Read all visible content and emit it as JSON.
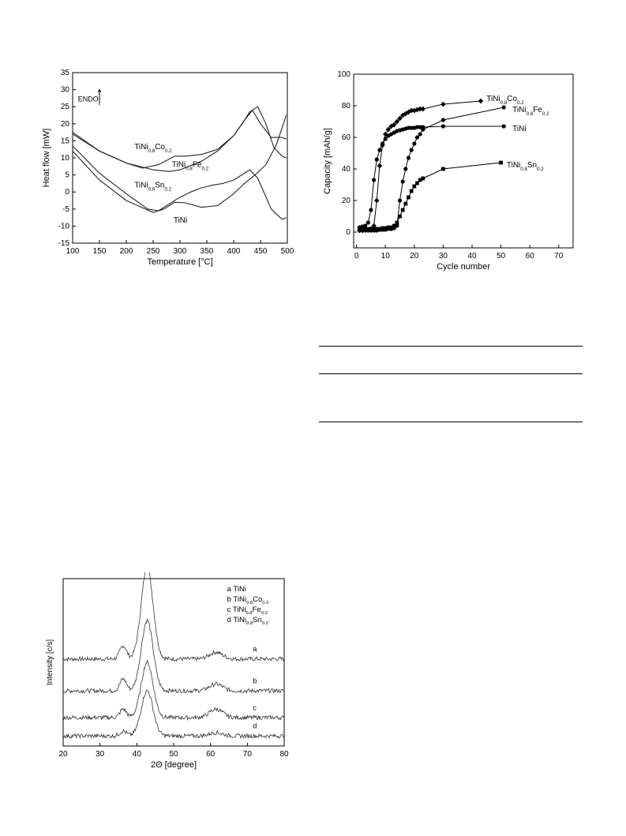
{
  "chart_data": [
    {
      "type": "line",
      "xlabel": "Temperature [°C]",
      "ylabel": "Heat flow [mW]",
      "xlim": [
        100,
        500
      ],
      "ylim": [
        -15,
        35
      ],
      "xticks": [
        100,
        150,
        200,
        250,
        300,
        350,
        400,
        450,
        500
      ],
      "yticks": [
        -15,
        -10,
        -5,
        0,
        5,
        10,
        15,
        20,
        25,
        30,
        35
      ],
      "annotation": "ENDO",
      "labels": [
        {
          "base": "TiNi",
          "sub1": "0.8",
          "el": "Co",
          "sub2": "0.2",
          "x": 215,
          "y": 12.5
        },
        {
          "base": "TiNi",
          "sub1": "0.8",
          "el": "Fe",
          "sub2": "0.2",
          "x": 285,
          "y": 7.3
        },
        {
          "base": "TiNi",
          "sub1": "0.8",
          "el": "Sn",
          "sub2": "0.2",
          "x": 215,
          "y": 1.3
        },
        {
          "base": "TiNi",
          "sub1": "",
          "el": "",
          "sub2": "",
          "x": 288,
          "y": -9.0
        }
      ],
      "series": [
        {
          "name": "TiNi0.8Co0.2",
          "x": [
            100,
            150,
            200,
            230,
            260,
            290,
            310,
            340,
            370,
            400,
            420,
            435,
            450,
            470,
            490,
            498
          ],
          "y": [
            17.5,
            12,
            8.5,
            7,
            8,
            10.5,
            10.5,
            11,
            12.5,
            16.5,
            21,
            24,
            20,
            16,
            16,
            15.5
          ]
        },
        {
          "name": "TiNi0.8Fe0.2",
          "x": [
            100,
            150,
            200,
            250,
            280,
            300,
            340,
            370,
            400,
            420,
            430,
            445,
            460,
            475,
            490,
            498
          ],
          "y": [
            17,
            12,
            8.5,
            6.5,
            6,
            6.5,
            9,
            12,
            16.5,
            21,
            23.5,
            25,
            20,
            13,
            10.5,
            10
          ]
        },
        {
          "name": "TiNi0.8Sn0.2",
          "x": [
            100,
            150,
            200,
            240,
            260,
            280,
            300,
            320,
            340,
            360,
            380,
            400,
            415,
            430,
            445,
            470,
            490,
            498
          ],
          "y": [
            13.5,
            5.5,
            -0.5,
            -5,
            -5.5,
            -3.5,
            -1.5,
            0,
            1.2,
            2,
            2.5,
            3.5,
            5,
            6.5,
            4,
            -5,
            -8,
            -7.5
          ]
        },
        {
          "name": "TiNi",
          "x": [
            100,
            150,
            200,
            250,
            270,
            290,
            310,
            340,
            370,
            400,
            420,
            440,
            460,
            480,
            498
          ],
          "y": [
            12,
            3.5,
            -2.5,
            -6,
            -5,
            -3,
            -3.2,
            -4.5,
            -4,
            -0.5,
            2.5,
            5,
            8,
            14,
            22.5
          ]
        }
      ]
    },
    {
      "type": "line",
      "xlabel": "Cycle number",
      "ylabel": "Capacity [mAh/g]",
      "xlim": [
        -1,
        75
      ],
      "ylim": [
        -10,
        100
      ],
      "xticks": [
        0,
        10,
        20,
        30,
        40,
        50,
        60,
        70
      ],
      "yticks": [
        0,
        20,
        40,
        60,
        80,
        100
      ],
      "labels": [
        {
          "base": "TiNi",
          "sub1": "0.8",
          "el": "Co",
          "sub2": "0.2",
          "x": 45,
          "y": 83
        },
        {
          "base": "TiNi",
          "sub1": "0.8",
          "el": "Fe",
          "sub2": "0.2",
          "x": 54,
          "y": 76
        },
        {
          "base": "TiNi",
          "sub1": "",
          "el": "",
          "sub2": "",
          "x": 54,
          "y": 64
        },
        {
          "base": "TiNi",
          "sub1": "0.8",
          "el": "Sn",
          "sub2": "0.2",
          "x": 52,
          "y": 41
        }
      ],
      "series": [
        {
          "name": "TiNi0.8Co0.2",
          "marker": "diamond",
          "x": [
            1,
            2,
            3,
            4,
            5,
            6,
            7,
            8,
            9,
            10,
            11,
            12,
            13,
            14,
            15,
            16,
            17,
            18,
            19,
            20,
            21,
            22,
            23,
            30,
            43
          ],
          "y": [
            1,
            1,
            1.5,
            1.5,
            2,
            4,
            20,
            42,
            55,
            62,
            65,
            67,
            68,
            70,
            72,
            74,
            75,
            76,
            77,
            77,
            77.5,
            78,
            78,
            81,
            83
          ]
        },
        {
          "name": "TiNi0.8Fe0.2",
          "marker": "circle",
          "x": [
            1,
            2,
            3,
            4,
            5,
            6,
            7,
            8,
            9,
            10,
            11,
            12,
            13,
            14,
            15,
            16,
            17,
            18,
            19,
            20,
            21,
            22,
            23,
            30,
            51
          ],
          "y": [
            1,
            1,
            1,
            1,
            1,
            1,
            1,
            1.5,
            1.5,
            1.5,
            2,
            2,
            2.5,
            4,
            20,
            32,
            40,
            47,
            52,
            56,
            60,
            62,
            65,
            71,
            79
          ]
        },
        {
          "name": "TiNi",
          "marker": "circle",
          "x": [
            1,
            2,
            3,
            4,
            5,
            6,
            7,
            8,
            9,
            10,
            11,
            12,
            13,
            14,
            15,
            16,
            17,
            18,
            19,
            20,
            21,
            22,
            23,
            30,
            51
          ],
          "y": [
            3,
            3.5,
            4,
            6,
            14,
            33,
            46,
            52,
            56,
            59,
            61,
            62,
            63,
            64,
            64.5,
            65,
            65.5,
            66,
            66,
            66,
            66.5,
            66.5,
            66.5,
            67,
            67
          ]
        },
        {
          "name": "TiNi0.8Sn0.2",
          "marker": "square",
          "x": [
            1,
            2,
            3,
            4,
            5,
            6,
            7,
            8,
            9,
            10,
            11,
            12,
            13,
            14,
            15,
            16,
            17,
            18,
            19,
            20,
            21,
            22,
            23,
            30,
            50
          ],
          "y": [
            2,
            2,
            2,
            2,
            2,
            2,
            2,
            2,
            2.5,
            2.5,
            3,
            3,
            4,
            6,
            10,
            14,
            18,
            22,
            26,
            29,
            31,
            33,
            34,
            40,
            44
          ]
        }
      ]
    },
    {
      "type": "line",
      "xlabel": "2Θ [degree]",
      "ylabel": "Intensity [c/s]",
      "xlim": [
        20,
        80
      ],
      "xticks": [
        20,
        30,
        40,
        50,
        60,
        70,
        80
      ],
      "legend": [
        {
          "key": "a",
          "base": "TiNi",
          "sub1": "",
          "el": "",
          "sub2": ""
        },
        {
          "key": "b",
          "base": "TiNi",
          "sub1": "0.8",
          "el": "Co",
          "sub2": "0.2"
        },
        {
          "key": "c",
          "base": "TiNi",
          "sub1": "0.8",
          "el": "Fe",
          "sub2": "0.2"
        },
        {
          "key": "d",
          "base": "TiNi",
          "sub1": "0.8",
          "el": "Sn",
          "sub2": "0.2"
        }
      ],
      "series": [
        {
          "name": "a",
          "baseline": 0.52,
          "peak": 0.55,
          "peak2": 0.08,
          "minor": 0.04
        },
        {
          "name": "b",
          "baseline": 0.33,
          "peak": 0.42,
          "peak2": 0.07,
          "minor": 0.04
        },
        {
          "name": "c",
          "baseline": 0.17,
          "peak": 0.33,
          "peak2": 0.05,
          "minor": 0.05
        },
        {
          "name": "d",
          "baseline": 0.06,
          "peak": 0.27,
          "peak2": 0.03,
          "minor": 0.02
        }
      ]
    }
  ]
}
